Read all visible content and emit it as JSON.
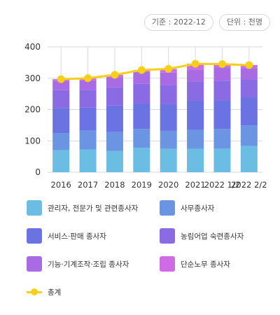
{
  "badges": {
    "base_date": "기준 : 2022-12",
    "unit": "단위 : 천명"
  },
  "colors": {
    "grid": "#d9d9d9",
    "axis_text": "#333333",
    "total_line": "#f5cf1a"
  },
  "chart_data": {
    "type": "bar",
    "stacked": true,
    "categories": [
      "2016",
      "2017",
      "2018",
      "2019",
      "2020",
      "2021",
      "2022 1/2",
      "2022 2/2"
    ],
    "ylim": [
      0,
      400
    ],
    "yticks": [
      0,
      100,
      200,
      300,
      400
    ],
    "grid": true,
    "legend_position": "bottom",
    "series": [
      {
        "name": "관리자, 전문가 및 관련종사자",
        "color": "#6bbde3",
        "values": [
          70,
          72,
          68,
          78,
          75,
          75,
          76,
          84
        ]
      },
      {
        "name": "사무종사자",
        "color": "#6b95e3",
        "values": [
          55,
          62,
          60,
          60,
          57,
          60,
          62,
          65
        ]
      },
      {
        "name": "서비스·판매 종사자",
        "color": "#6b73e3",
        "values": [
          80,
          72,
          85,
          82,
          86,
          93,
          92,
          90
        ]
      },
      {
        "name": "농림어업 숙련종사자",
        "color": "#8b6be3",
        "values": [
          57,
          57,
          58,
          62,
          60,
          62,
          62,
          58
        ]
      },
      {
        "name": "기능·기계조작·조립 종사자",
        "color": "#a86be3",
        "values": [
          30,
          30,
          32,
          38,
          40,
          38,
          43,
          35
        ]
      },
      {
        "name": "단순노무 종사자",
        "color": "#cf6be3",
        "values": [
          5,
          7,
          8,
          6,
          12,
          18,
          10,
          10
        ]
      }
    ],
    "total": {
      "name": "총계",
      "values": [
        297,
        300,
        311,
        326,
        330,
        346,
        345,
        342
      ]
    }
  }
}
